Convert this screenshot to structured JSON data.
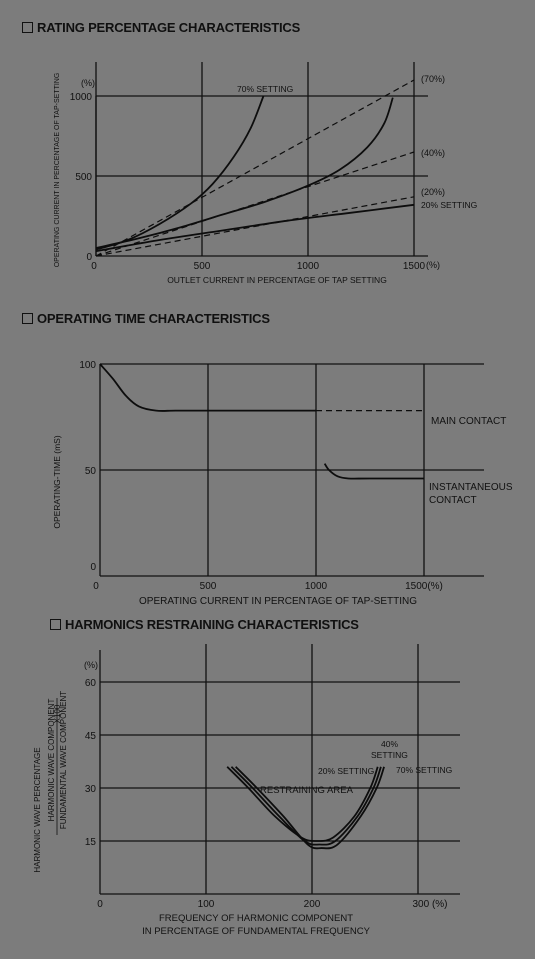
{
  "chart_data": [
    {
      "type": "line",
      "title": "RATING PERCENTAGE CHARACTERISTICS",
      "xlabel": "OUTLET CURRENT IN PERCENTAGE OF TAP SETTING",
      "ylabel": "OPERATING CURRENT IN PERCENTAGE OF TAP-SETTING",
      "xlim": [
        0,
        1500
      ],
      "ylim": [
        0,
        1000
      ],
      "x_ticks": [
        "0",
        "500",
        "1000",
        "1500"
      ],
      "x_unit": "(%)",
      "y_ticks": [
        "0",
        "500",
        "1000"
      ],
      "y_unit": "(%)",
      "grid": true,
      "series": [
        {
          "name": "70% SETTING",
          "style": "solid",
          "x": [
            0,
            150,
            300,
            450,
            550,
            650,
            730,
            790
          ],
          "y": [
            40,
            100,
            200,
            330,
            450,
            620,
            800,
            1000
          ]
        },
        {
          "name": "",
          "style": "solid",
          "x": [
            0,
            200,
            400,
            600,
            800,
            1000,
            1150,
            1280,
            1360,
            1400
          ],
          "y": [
            50,
            110,
            180,
            260,
            340,
            440,
            540,
            680,
            830,
            990
          ]
        },
        {
          "name": "20% SETTING",
          "style": "solid",
          "x": [
            0,
            300,
            600,
            900,
            1200,
            1500
          ],
          "y": [
            30,
            100,
            160,
            220,
            270,
            320
          ]
        },
        {
          "name": "(70%)",
          "style": "dashed",
          "x": [
            0,
            1500
          ],
          "y": [
            0,
            1100
          ]
        },
        {
          "name": "(40%)",
          "style": "dashed",
          "x": [
            0,
            1500
          ],
          "y": [
            0,
            650
          ]
        },
        {
          "name": "(20%)",
          "style": "dashed",
          "x": [
            0,
            1500
          ],
          "y": [
            0,
            370
          ]
        }
      ]
    },
    {
      "type": "line",
      "title": "OPERATING TIME CHARACTERISTICS",
      "xlabel": "OPERATING CURRENT IN PERCENTAGE OF TAP-SETTING",
      "ylabel": "OPERATING-TIME (mS)",
      "xlim": [
        0,
        1500
      ],
      "ylim": [
        0,
        100
      ],
      "x_ticks": [
        "0",
        "500",
        "1000",
        "1500(%)"
      ],
      "y_ticks": [
        "0",
        "50",
        "100"
      ],
      "grid": true,
      "series": [
        {
          "name": "MAIN CONTACT",
          "style": "solid",
          "x": [
            0,
            60,
            120,
            180,
            260,
            350,
            500,
            1000
          ],
          "y": [
            100,
            93,
            85,
            80,
            78,
            78,
            78,
            78
          ]
        },
        {
          "name": "MAIN CONTACT",
          "style": "dashed",
          "x": [
            1000,
            1500
          ],
          "y": [
            78,
            78
          ]
        },
        {
          "name": "INSTANTANEOUS CONTACT",
          "style": "solid",
          "x": [
            1040,
            1060,
            1100,
            1150,
            1250,
            1500
          ],
          "y": [
            53,
            50,
            47,
            46,
            46,
            46
          ]
        }
      ]
    },
    {
      "type": "line",
      "title": "HARMONICS RESTRAINING CHARACTERISTICS",
      "xlabel": "FREQUENCY OF HARMONIC COMPONENT",
      "xlabel2": "IN PERCENTAGE OF FUNDAMENTAL FREQUENCY",
      "ylabel": "HARMONIC WAVE PERCENTAGE",
      "ylabel_num": "HARMONIC WAVE COMPONENT",
      "ylabel_den": "FUNDAMENTAL WAVE COMPONENT",
      "ylabel_factor": "X100",
      "xlim": [
        0,
        300
      ],
      "ylim": [
        0,
        60
      ],
      "x_ticks": [
        "0",
        "100",
        "200",
        "300 (%)"
      ],
      "y_ticks": [
        "15",
        "30",
        "45",
        "60"
      ],
      "y_unit": "(%)",
      "grid": true,
      "annotation": "RESTRAINING AREA",
      "series": [
        {
          "name": "20% SETTING",
          "style": "solid",
          "x": [
            120,
            140,
            165,
            190,
            205,
            220,
            240,
            255,
            262
          ],
          "y": [
            36,
            30,
            22,
            16,
            15,
            16,
            22,
            30,
            36
          ]
        },
        {
          "name": "40% SETTING",
          "style": "solid",
          "x": [
            124,
            144,
            169,
            193,
            207,
            222,
            243,
            258,
            265
          ],
          "y": [
            36,
            30,
            22,
            15,
            14,
            15,
            22,
            30,
            36
          ]
        },
        {
          "name": "70% SETTING",
          "style": "solid",
          "x": [
            128,
            148,
            173,
            196,
            209,
            224,
            246,
            261,
            268
          ],
          "y": [
            36,
            30,
            22,
            14,
            13,
            14,
            22,
            30,
            36
          ]
        }
      ]
    }
  ]
}
